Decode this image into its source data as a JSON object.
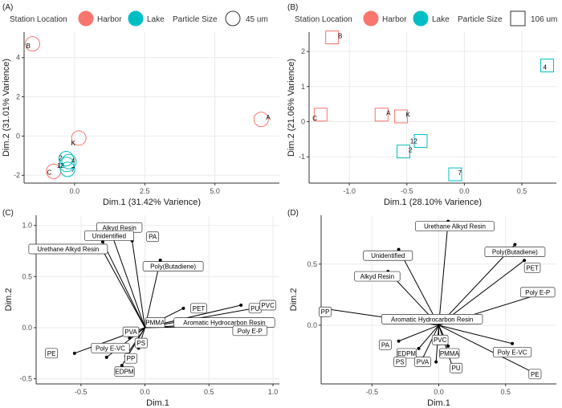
{
  "colors": {
    "harbor": "#F8766D",
    "lake": "#00BFC4",
    "grid": "#ebebeb",
    "text": "#333333",
    "panel_text": "#1a1a1a"
  },
  "legend_labels": {
    "station": "Station Location",
    "harbor": "Harbor",
    "lake": "Lake",
    "size": "Particle Size"
  },
  "chart_data": [
    {
      "panel": "(A)",
      "type": "scatter",
      "xlabel": "Dim.1 (31.42% Varience)",
      "ylabel": "Dim.2 (31.01% Varience)",
      "xlim": [
        -1.8,
        7.3
      ],
      "ylim": [
        -2.4,
        5.3
      ],
      "xticks": [
        0,
        2.5,
        5
      ],
      "xtick_labels": [
        "0.0",
        "2.5",
        "5.0"
      ],
      "yticks": [
        -2,
        0,
        2,
        4
      ],
      "ytick_labels": [
        "-2",
        "0",
        "2",
        "4"
      ],
      "size_label": "45 um",
      "marker": "circle",
      "points": [
        {
          "label": "B",
          "x": -1.5,
          "y": 4.7,
          "group": "harbor",
          "lx": -1.65,
          "ly": 4.6
        },
        {
          "label": "A",
          "x": 6.65,
          "y": 0.85,
          "group": "harbor",
          "lx": 6.9,
          "ly": 0.95
        },
        {
          "label": "K",
          "x": 0.15,
          "y": -0.1,
          "group": "harbor",
          "lx": -0.05,
          "ly": -0.35
        },
        {
          "label": "C",
          "x": -0.75,
          "y": -1.8,
          "group": "harbor",
          "lx": -0.9,
          "ly": -1.85
        },
        {
          "label": "2",
          "x": -0.3,
          "y": -1.15,
          "group": "lake",
          "lx": -0.5,
          "ly": -1.1
        },
        {
          "label": "4",
          "x": -0.2,
          "y": -1.3,
          "group": "lake",
          "lx": -0.05,
          "ly": -1.25
        },
        {
          "label": "12",
          "x": -0.28,
          "y": -1.45,
          "group": "lake",
          "lx": -0.5,
          "ly": -1.5
        },
        {
          "label": "7",
          "x": -0.25,
          "y": -1.7,
          "group": "lake",
          "lx": -0.05,
          "ly": -1.7
        }
      ]
    },
    {
      "panel": "(B)",
      "type": "scatter",
      "xlabel": "Dim.1 (28.10% Varience)",
      "ylabel": "Dim.2 (21.06% Varience)",
      "xlim": [
        -1.35,
        0.8
      ],
      "ylim": [
        -1.75,
        2.55
      ],
      "xticks": [
        -1,
        -0.5,
        0,
        0.5
      ],
      "xtick_labels": [
        "-1.0",
        "-0.5",
        "0.0",
        "0.5"
      ],
      "yticks": [
        -1,
        0,
        1,
        2
      ],
      "ytick_labels": [
        "-1",
        "0",
        "1",
        "2"
      ],
      "size_label": "106 um",
      "marker": "square",
      "points": [
        {
          "label": "B",
          "x": -1.15,
          "y": 2.4,
          "group": "harbor",
          "lx": -1.08,
          "ly": 2.45
        },
        {
          "label": "C",
          "x": -1.25,
          "y": 0.2,
          "group": "harbor",
          "lx": -1.3,
          "ly": 0.1
        },
        {
          "label": "A",
          "x": -0.72,
          "y": 0.2,
          "group": "harbor",
          "lx": -0.66,
          "ly": 0.25
        },
        {
          "label": "K",
          "x": -0.55,
          "y": 0.15,
          "group": "harbor",
          "lx": -0.49,
          "ly": 0.2
        },
        {
          "label": "4",
          "x": 0.72,
          "y": 1.6,
          "group": "lake",
          "lx": 0.7,
          "ly": 1.55
        },
        {
          "label": "12",
          "x": -0.38,
          "y": -0.55,
          "group": "lake",
          "lx": -0.44,
          "ly": -0.55
        },
        {
          "label": "2",
          "x": -0.53,
          "y": -0.85,
          "group": "lake",
          "lx": -0.47,
          "ly": -0.8
        },
        {
          "label": "7",
          "x": -0.08,
          "y": -1.5,
          "group": "lake",
          "lx": -0.04,
          "ly": -1.45
        }
      ]
    },
    {
      "panel": "(C)",
      "type": "biplot",
      "xlabel": "Dim.1",
      "ylabel": "Dim.2",
      "xlim": [
        -0.85,
        1.05
      ],
      "ylim": [
        -0.55,
        1.1
      ],
      "xticks": [
        -0.5,
        0,
        0.5,
        1
      ],
      "xtick_labels": [
        "-0.5",
        "0.0",
        "0.5",
        "1.0"
      ],
      "yticks": [
        -0.5,
        0,
        0.5,
        1
      ],
      "ytick_labels": [
        "-0.5",
        "0.0",
        "0.5",
        "1.0"
      ],
      "vectors": [
        {
          "label": "Alkyd Resin",
          "x": -0.25,
          "y": 0.88,
          "lx": -0.2,
          "ly": 0.98
        },
        {
          "label": "Unidentified",
          "x": -0.33,
          "y": 0.84,
          "lx": -0.28,
          "ly": 0.9
        },
        {
          "label": "PA",
          "x": -0.1,
          "y": 0.85,
          "lx": 0.06,
          "ly": 0.89
        },
        {
          "label": "Urethane Alkyd Resin",
          "x": -0.35,
          "y": 0.8,
          "lx": -0.6,
          "ly": 0.77
        },
        {
          "label": "Poly(Butadiene)",
          "x": 0.12,
          "y": 0.66,
          "lx": 0.22,
          "ly": 0.6
        },
        {
          "label": "PET",
          "x": 0.3,
          "y": 0.19,
          "lx": 0.42,
          "ly": 0.19
        },
        {
          "label": "PMMA",
          "x": 0.02,
          "y": 0.05,
          "lx": 0.08,
          "ly": 0.05
        },
        {
          "label": "PU",
          "x": 0.75,
          "y": 0.22,
          "lx": 0.86,
          "ly": 0.19
        },
        {
          "label": "PVC",
          "x": 0.9,
          "y": 0.2,
          "lx": 0.96,
          "ly": 0.22
        },
        {
          "label": "Aromatic Hydrocarbon Resin",
          "x": 0.7,
          "y": 0.05,
          "lx": 0.62,
          "ly": 0.05
        },
        {
          "label": "Poly E-P",
          "x": 0.85,
          "y": 0.02,
          "lx": 0.82,
          "ly": -0.03
        },
        {
          "label": "PVA",
          "x": -0.12,
          "y": -0.1,
          "lx": -0.11,
          "ly": -0.04
        },
        {
          "label": "PS",
          "x": -0.05,
          "y": -0.2,
          "lx": -0.03,
          "ly": -0.15
        },
        {
          "label": "Poly E-VC",
          "x": -0.3,
          "y": -0.29,
          "lx": -0.27,
          "ly": -0.2
        },
        {
          "label": "PE",
          "x": -0.55,
          "y": -0.25,
          "lx": -0.73,
          "ly": -0.25
        },
        {
          "label": "PP",
          "x": -0.15,
          "y": -0.28,
          "lx": -0.11,
          "ly": -0.3
        },
        {
          "label": "EDPM",
          "x": -0.18,
          "y": -0.37,
          "lx": -0.16,
          "ly": -0.43
        }
      ]
    },
    {
      "panel": "(D)",
      "type": "biplot",
      "xlabel": "Dim.1",
      "ylabel": "Dim.2",
      "xlim": [
        -0.88,
        0.88
      ],
      "ylim": [
        -0.48,
        0.9
      ],
      "xticks": [
        -0.5,
        0,
        0.5
      ],
      "xtick_labels": [
        "-0.5",
        "0.0",
        "0.5"
      ],
      "yticks": [
        0,
        0.5
      ],
      "ytick_labels": [
        "0.0",
        "0.5"
      ],
      "vectors": [
        {
          "label": "Urethane Alkyd Resin",
          "x": 0.07,
          "y": 0.85,
          "lx": 0.12,
          "ly": 0.81
        },
        {
          "label": "Poly(Butadiene)",
          "x": 0.57,
          "y": 0.66,
          "lx": 0.57,
          "ly": 0.6
        },
        {
          "label": "Unidentified",
          "x": -0.3,
          "y": 0.62,
          "lx": -0.38,
          "ly": 0.57
        },
        {
          "label": "PET",
          "x": 0.64,
          "y": 0.53,
          "lx": 0.7,
          "ly": 0.47
        },
        {
          "label": "Alkyd Resin",
          "x": -0.38,
          "y": 0.44,
          "lx": -0.46,
          "ly": 0.4
        },
        {
          "label": "Poly E-P",
          "x": 0.8,
          "y": 0.27,
          "lx": 0.74,
          "ly": 0.27
        },
        {
          "label": "Aromatic Hydrocarbon Resin",
          "x": 0.05,
          "y": 0.03,
          "lx": -0.05,
          "ly": 0.05
        },
        {
          "label": "PP",
          "x": -0.82,
          "y": 0.13,
          "lx": -0.85,
          "ly": 0.11
        },
        {
          "label": "PA",
          "x": -0.3,
          "y": -0.13,
          "lx": -0.4,
          "ly": -0.16
        },
        {
          "label": "PVC",
          "x": 0.0,
          "y": -0.15,
          "lx": 0.01,
          "ly": -0.12
        },
        {
          "label": "EDPM",
          "x": -0.15,
          "y": -0.19,
          "lx": -0.24,
          "ly": -0.23
        },
        {
          "label": "PMMA",
          "x": 0.07,
          "y": -0.17,
          "lx": 0.08,
          "ly": -0.23
        },
        {
          "label": "Poly E-VC",
          "x": 0.55,
          "y": -0.15,
          "lx": 0.55,
          "ly": -0.22
        },
        {
          "label": "PS",
          "x": -0.12,
          "y": -0.27,
          "lx": -0.29,
          "ly": -0.3
        },
        {
          "label": "PVA",
          "x": -0.02,
          "y": -0.3,
          "lx": -0.12,
          "ly": -0.3
        },
        {
          "label": "PU",
          "x": 0.1,
          "y": -0.33,
          "lx": 0.13,
          "ly": -0.35
        },
        {
          "label": "PE",
          "x": 0.75,
          "y": -0.41,
          "lx": 0.72,
          "ly": -0.4
        }
      ]
    }
  ]
}
